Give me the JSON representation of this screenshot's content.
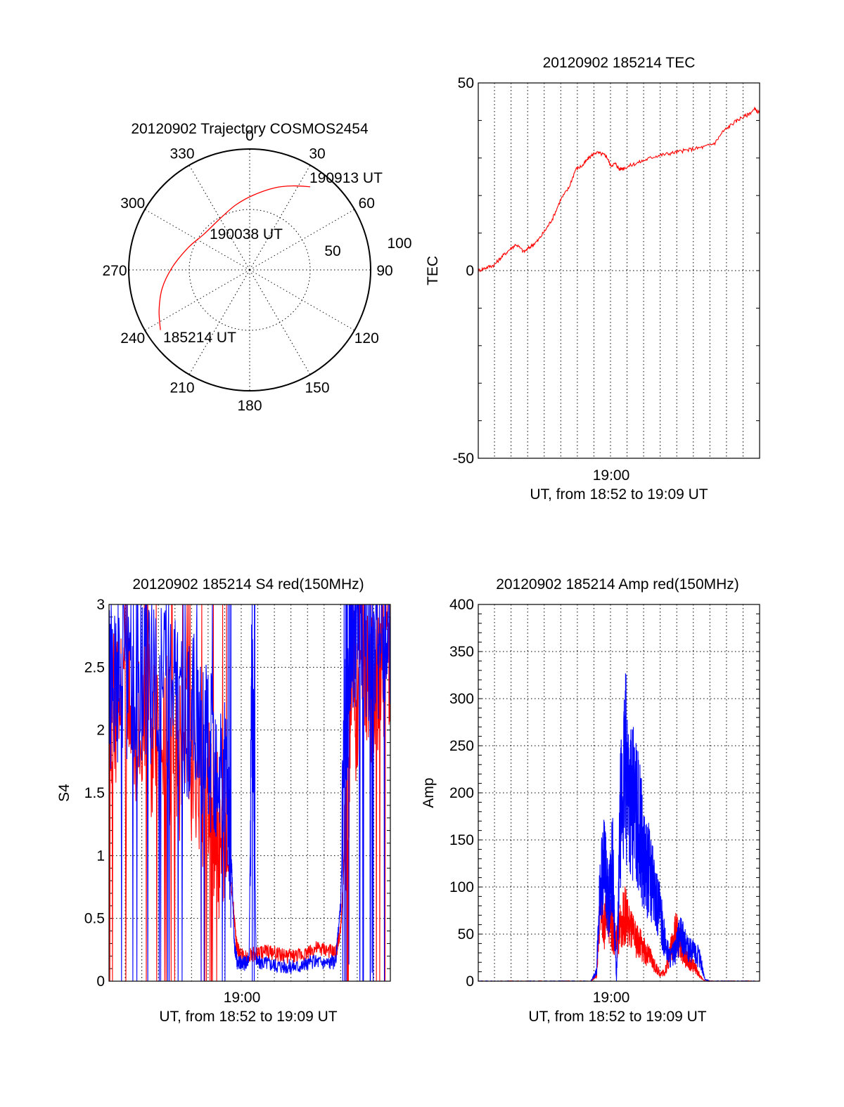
{
  "chart_data": [
    {
      "type": "polar",
      "title": "20120902 Trajectory COSMOS2454",
      "azimuth_labels": [
        "0",
        "30",
        "60",
        "90",
        "120",
        "150",
        "180",
        "210",
        "240",
        "270",
        "300",
        "330"
      ],
      "radius_labels": [
        "50",
        "100"
      ],
      "grid": true,
      "track_color": "#ff0000",
      "annotations": [
        "190913 UT",
        "190038 UT",
        "185214 UT"
      ],
      "track": {
        "name": "",
        "points": [
          {
            "az": 236,
            "r": 89
          },
          {
            "az": 246,
            "r": 82
          },
          {
            "az": 258,
            "r": 74
          },
          {
            "az": 272,
            "r": 64
          },
          {
            "az": 290,
            "r": 54
          },
          {
            "az": 308,
            "r": 48
          },
          {
            "az": 330,
            "r": 49
          },
          {
            "az": 348,
            "r": 55
          },
          {
            "az": 3,
            "r": 62
          },
          {
            "az": 17,
            "r": 71
          },
          {
            "az": 27,
            "r": 78
          },
          {
            "az": 36,
            "r": 85
          }
        ]
      }
    },
    {
      "type": "line",
      "title": "20120902 185214 TEC",
      "ylabel": "TEC",
      "xlabel": "UT, from 18:52 to 19:09 UT",
      "x_tick_labels": [
        "19:00"
      ],
      "y_tick_labels": [
        "50",
        "0",
        "-50"
      ],
      "xlim": [
        18.867,
        19.15
      ],
      "ylim": [
        -50,
        50
      ],
      "grid": true,
      "series": [
        {
          "name": "",
          "color": "#ff0000",
          "x": [
            18.867,
            18.875,
            18.883,
            18.89,
            18.898,
            18.905,
            18.913,
            18.92,
            18.927,
            18.935,
            18.942,
            18.95,
            18.958,
            18.965,
            18.972,
            18.978,
            18.985,
            18.992,
            18.996,
            19.0,
            19.005,
            19.009,
            19.015,
            19.025,
            19.035,
            19.045,
            19.055,
            19.065,
            19.075,
            19.085,
            19.095,
            19.105,
            19.113,
            19.122,
            19.13,
            19.138,
            19.145,
            19.15
          ],
          "y": [
            0,
            0.8,
            1.5,
            3.5,
            5.5,
            7,
            5,
            6.5,
            8,
            11,
            14,
            19,
            22,
            27,
            28,
            30,
            31.5,
            31,
            30.5,
            28,
            28.5,
            27,
            27.5,
            28.5,
            29.5,
            30.5,
            31,
            31.5,
            32,
            32.5,
            33,
            34,
            37,
            39,
            40.5,
            41.5,
            43,
            42
          ]
        }
      ]
    },
    {
      "type": "line",
      "title": "20120902 185214 S4 red(150MHz)",
      "ylabel": "S4",
      "xlabel": "UT, from 18:52 to 19:09 UT",
      "x_tick_labels": [
        "19:00"
      ],
      "y_tick_labels": [
        "3",
        "2.5",
        "2",
        "1.5",
        "1",
        "0.5",
        "0"
      ],
      "xlim": [
        18.867,
        19.15
      ],
      "ylim": [
        0,
        3
      ],
      "grid": true,
      "series": [
        {
          "name": "",
          "color": "#ff0000",
          "x": [
            18.867,
            18.88,
            18.895,
            18.91,
            18.925,
            18.94,
            18.955,
            18.965,
            18.975,
            18.985,
            18.992,
            18.995,
            18.998,
            19.005,
            19.015,
            19.025,
            19.035,
            19.045,
            19.055,
            19.065,
            19.075,
            19.085,
            19.095,
            19.1,
            19.105,
            19.11,
            19.12,
            19.13,
            19.14,
            19.15
          ],
          "y": [
            2.2,
            2.3,
            2.1,
            2.0,
            1.9,
            1.8,
            1.6,
            1.4,
            1.25,
            1.05,
            0.6,
            0.3,
            0.22,
            0.2,
            0.22,
            0.24,
            0.22,
            0.2,
            0.2,
            0.22,
            0.26,
            0.25,
            0.22,
            0.4,
            1.2,
            2.0,
            2.5,
            2.3,
            2.6,
            2.7
          ]
        },
        {
          "name": "",
          "color": "#0000ff",
          "x": [
            18.867,
            18.88,
            18.895,
            18.91,
            18.925,
            18.94,
            18.955,
            18.965,
            18.975,
            18.985,
            18.99,
            18.993,
            18.996,
            19.0,
            19.004,
            19.008,
            19.011,
            19.015,
            19.025,
            19.035,
            19.045,
            19.055,
            19.065,
            19.075,
            19.085,
            19.095,
            19.1,
            19.105,
            19.11,
            19.12,
            19.13,
            19.14,
            19.15
          ],
          "y": [
            2.3,
            2.5,
            2.4,
            2.3,
            2.4,
            2.2,
            2.1,
            1.9,
            1.8,
            1.5,
            1.0,
            0.3,
            0.15,
            0.15,
            0.14,
            0.2,
            2.8,
            0.15,
            0.15,
            0.13,
            0.12,
            0.12,
            0.13,
            0.16,
            0.15,
            0.15,
            0.6,
            2.0,
            2.8,
            2.9,
            2.7,
            2.8,
            2.9
          ]
        }
      ]
    },
    {
      "type": "line",
      "title": "20120902 185214 Amp red(150MHz)",
      "ylabel": "Amp",
      "xlabel": "UT, from 18:52 to 19:09 UT",
      "x_tick_labels": [
        "19:00"
      ],
      "y_tick_labels": [
        "400",
        "350",
        "300",
        "250",
        "200",
        "150",
        "100",
        "50",
        "0"
      ],
      "xlim": [
        18.867,
        19.15
      ],
      "ylim": [
        0,
        400
      ],
      "grid": true,
      "series": [
        {
          "name": "",
          "color": "#ff0000",
          "x": [
            18.867,
            18.9,
            18.93,
            18.98,
            18.986,
            18.99,
            18.994,
            18.998,
            19.002,
            19.006,
            19.01,
            19.015,
            19.02,
            19.025,
            19.03,
            19.035,
            19.04,
            19.045,
            19.05,
            19.055,
            19.06,
            19.065,
            19.07,
            19.075,
            19.08,
            19.085,
            19.09,
            19.095,
            19.1,
            19.12,
            19.15
          ],
          "y": [
            0,
            0,
            0,
            0,
            5,
            90,
            60,
            75,
            55,
            40,
            60,
            70,
            55,
            45,
            40,
            30,
            25,
            15,
            8,
            10,
            30,
            55,
            40,
            25,
            20,
            15,
            5,
            0,
            0,
            0,
            0
          ]
        },
        {
          "name": "",
          "color": "#0000ff",
          "x": [
            18.867,
            18.9,
            18.93,
            18.98,
            18.986,
            18.99,
            18.994,
            18.998,
            19.002,
            19.006,
            19.01,
            19.015,
            19.02,
            19.025,
            19.03,
            19.035,
            19.04,
            19.045,
            19.05,
            19.055,
            19.06,
            19.065,
            19.07,
            19.075,
            19.08,
            19.085,
            19.09,
            19.095,
            19.1,
            19.12,
            19.15
          ],
          "y": [
            0,
            0,
            0,
            0,
            10,
            110,
            120,
            80,
            130,
            0,
            170,
            230,
            200,
            180,
            160,
            120,
            115,
            90,
            70,
            40,
            25,
            30,
            50,
            40,
            35,
            30,
            25,
            2,
            0,
            0,
            0
          ]
        }
      ]
    }
  ]
}
